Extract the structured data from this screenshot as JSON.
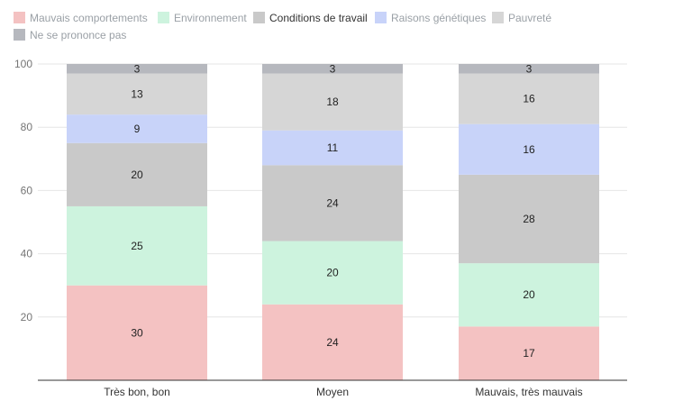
{
  "chart_data": {
    "type": "bar",
    "stacked": true,
    "categories": [
      "Très bon, bon",
      "Moyen",
      "Mauvais, très mauvais"
    ],
    "series": [
      {
        "name": "Mauvais comportements",
        "values": [
          30,
          24,
          17
        ],
        "color": "#f4c2c2",
        "legend_active": false
      },
      {
        "name": "Environnement",
        "values": [
          25,
          20,
          20
        ],
        "color": "#cdf3de",
        "legend_active": false
      },
      {
        "name": "Conditions de travail",
        "values": [
          20,
          24,
          28
        ],
        "color": "#c9c9c9",
        "legend_active": true
      },
      {
        "name": "Raisons génétiques",
        "values": [
          9,
          11,
          16
        ],
        "color": "#c8d3f9",
        "legend_active": false
      },
      {
        "name": "Pauvreté",
        "values": [
          13,
          18,
          16
        ],
        "color": "#d6d6d6",
        "legend_active": false
      },
      {
        "name": "Ne se prononce pas",
        "values": [
          3,
          3,
          3
        ],
        "color": "#b6b8be",
        "legend_active": false
      }
    ],
    "yticks": [
      20,
      40,
      60,
      80,
      100
    ],
    "ylim": [
      0,
      100
    ],
    "grid": true,
    "legend_position": "top-left"
  }
}
